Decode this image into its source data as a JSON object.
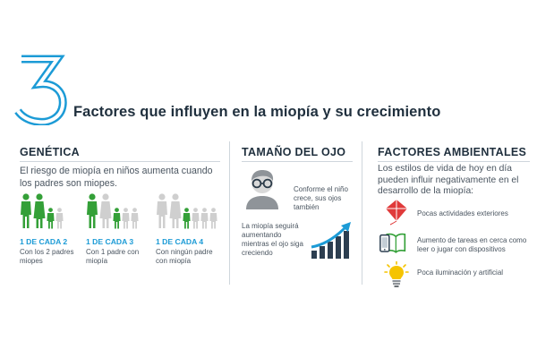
{
  "header": {
    "number": "3",
    "title": "Factores que influyen en la miopía y su crecimiento"
  },
  "colors": {
    "accent_blue": "#1c9bd6",
    "affected_green": "#34a038",
    "unaffected_gray": "#cfcfcf",
    "text_dark": "#1f2f3d"
  },
  "genetica": {
    "heading": "GENÉTICA",
    "text": "El riesgo de miopía en niños aumenta cuando los padres son miopes.",
    "stats": [
      {
        "ratio": "1 DE CADA 2",
        "desc": "Con los 2 padres miopes"
      },
      {
        "ratio": "1 DE CADA 3",
        "desc": "Con 1 padre con miopía"
      },
      {
        "ratio": "1 DE CADA 4",
        "desc": "Con ningún padre con miopía"
      }
    ]
  },
  "tamano": {
    "heading": "TAMAÑO DEL OJO",
    "note1": "Conforme el niño crece, sus ojos también",
    "note2": "La miopía seguirá aumentando mientras el ojo siga creciendo"
  },
  "ambientales": {
    "heading": "FACTORES AMBIENTALES",
    "text": "Los estilos de vida de hoy en día pueden influir negativamente en el desarrollo de la miopía:",
    "items": [
      {
        "icon": "kite-icon",
        "label": "Pocas actividades exteriores"
      },
      {
        "icon": "phone-book-icon",
        "label": "Aumento de tareas en cerca como leer o jugar con dispositivos"
      },
      {
        "icon": "lightbulb-icon",
        "label": "Poca iluminación y artificial"
      }
    ]
  }
}
